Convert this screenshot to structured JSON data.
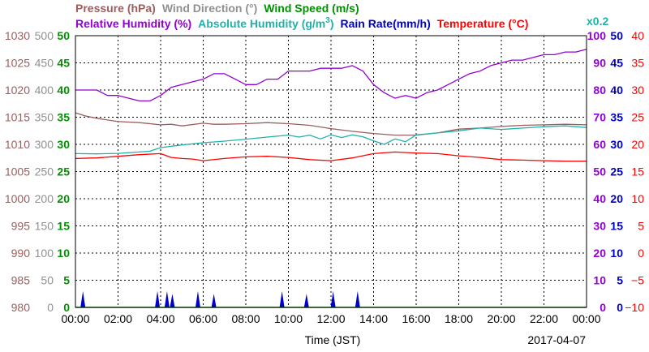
{
  "chart_data": {
    "type": "line",
    "xlabel": "Time (JST)",
    "date_label": "2017-04-07",
    "x_ticks": [
      "00:00",
      "02:00",
      "04:00",
      "06:00",
      "08:00",
      "10:00",
      "12:00",
      "14:00",
      "16:00",
      "18:00",
      "20:00",
      "22:00",
      "00:00"
    ],
    "x_range_hours": [
      0,
      24
    ],
    "grid": true,
    "legend": {
      "row1": [
        {
          "key": "pressure",
          "text": "Pressure (hPa)",
          "color": "#9B5E5E"
        },
        {
          "key": "wind_dir",
          "text": "Wind Direction (°)",
          "color": "#909090"
        },
        {
          "key": "wind_speed",
          "text": "Wind Speed (m/s)",
          "color": "#009000"
        }
      ],
      "row2": [
        {
          "key": "rh",
          "text": "Relative Humidity (%)",
          "color": "#9400D3"
        },
        {
          "key": "ah",
          "text": "Absolute Humidity (g/m",
          "sup": "3",
          "tail": ")",
          "color": "#20B2AA"
        },
        {
          "key": "rain",
          "text": "Rain Rate(mm/h)",
          "color": "#0000CC"
        },
        {
          "key": "temp",
          "text": "Temperature (°C)",
          "color": "#FF0000"
        }
      ],
      "ah_multiplier": "x0.2"
    },
    "axes": {
      "pressure": {
        "color": "#9B5E5E",
        "range": [
          980,
          1030
        ],
        "ticks": [
          "980",
          "985",
          "990",
          "995",
          "1000",
          "1005",
          "1010",
          "1015",
          "1020",
          "1025",
          "1030"
        ]
      },
      "wind_dir": {
        "color": "#909090",
        "range": [
          0,
          500
        ],
        "ticks": [
          "0",
          "50",
          "100",
          "150",
          "200",
          "250",
          "300",
          "350",
          "400",
          "450",
          "500"
        ]
      },
      "wind_speed": {
        "color": "#009000",
        "range": [
          0,
          50
        ],
        "ticks": [
          "0",
          "5",
          "10",
          "15",
          "20",
          "25",
          "30",
          "35",
          "40",
          "45",
          "50"
        ]
      },
      "rh": {
        "color": "#9400D3",
        "range": [
          0,
          100
        ],
        "ticks": [
          "0",
          "10",
          "20",
          "30",
          "40",
          "50",
          "60",
          "70",
          "80",
          "90",
          "100"
        ]
      },
      "rain": {
        "color": "#0000CC",
        "range": [
          0,
          50
        ],
        "ticks": [
          "0",
          "5",
          "10",
          "15",
          "20",
          "25",
          "30",
          "35",
          "40",
          "45",
          "50"
        ]
      },
      "temp": {
        "color": "#FF0000",
        "range": [
          -10,
          40
        ],
        "ticks": [
          "−10",
          "−5",
          "0",
          "5",
          "10",
          "15",
          "20",
          "25",
          "30",
          "35",
          "40"
        ]
      }
    },
    "series": [
      {
        "name": "Pressure (hPa)",
        "color": "#9B5E5E",
        "axis": "pressure",
        "x": [
          0,
          0.5,
          1,
          2,
          3,
          4,
          4.5,
          5,
          6,
          6.5,
          7,
          8,
          9,
          10,
          11,
          12,
          13,
          14,
          15,
          16,
          17,
          18,
          19,
          20,
          21,
          22,
          23,
          24
        ],
        "y": [
          1015.8,
          1015.2,
          1014.8,
          1014.2,
          1014.0,
          1013.6,
          1013.7,
          1013.4,
          1013.9,
          1013.7,
          1013.7,
          1013.8,
          1014.0,
          1013.8,
          1013.5,
          1012.9,
          1012.4,
          1012.0,
          1011.7,
          1011.7,
          1012.1,
          1012.8,
          1013.0,
          1013.3,
          1013.5,
          1013.6,
          1013.7,
          1013.6
        ]
      },
      {
        "name": "Absolute Humidity (g/m3)",
        "color": "#20B2AA",
        "axis": "rh",
        "x": [
          0,
          1,
          2,
          3,
          3.5,
          4,
          5,
          6,
          7,
          8,
          9,
          10,
          10.5,
          11,
          11.5,
          12,
          12.5,
          13,
          13.5,
          14,
          14.5,
          15,
          15.5,
          16,
          17,
          18,
          19,
          20,
          21,
          22,
          23,
          24
        ],
        "y": [
          56.6,
          56.5,
          56.7,
          57.2,
          57.5,
          58.8,
          59.8,
          60.6,
          61.2,
          61.9,
          62.7,
          63.4,
          62.7,
          63.4,
          62.0,
          63.5,
          62.5,
          63.5,
          62.8,
          61.3,
          60.0,
          62.0,
          61.0,
          63.5,
          64.2,
          65.0,
          66.0,
          65.5,
          66.0,
          66.5,
          66.8,
          66.2
        ]
      },
      {
        "name": "Temperature (°C)",
        "color": "#FF0000",
        "axis": "temp",
        "x": [
          0,
          1,
          2,
          3,
          4,
          4.5,
          5,
          5.5,
          6,
          7,
          8,
          9,
          10,
          11,
          12,
          13,
          14,
          15,
          16,
          17,
          18,
          19,
          20,
          21,
          22,
          23,
          24
        ],
        "y": [
          17.4,
          17.5,
          17.8,
          18.1,
          18.3,
          17.6,
          17.4,
          17.3,
          17.0,
          17.4,
          17.7,
          17.8,
          17.6,
          17.2,
          17.0,
          17.5,
          18.3,
          18.6,
          18.4,
          18.3,
          17.9,
          17.6,
          17.2,
          17.1,
          17.0,
          16.9,
          16.9
        ]
      },
      {
        "name": "Relative Humidity (%)",
        "color": "#9400D3",
        "axis": "rh",
        "x": [
          0,
          1,
          1.5,
          2,
          2.5,
          3,
          3.5,
          4,
          4.5,
          5,
          5.5,
          6,
          6.5,
          7,
          7.5,
          8,
          8.5,
          9,
          9.5,
          10,
          10.5,
          11,
          11.5,
          12,
          12.5,
          13,
          13.5,
          14,
          14.5,
          15,
          15.5,
          16,
          16.5,
          17,
          17.5,
          18,
          18.5,
          19,
          19.5,
          20,
          20.5,
          21,
          21.5,
          22,
          22.5,
          23,
          23.5,
          24
        ],
        "y": [
          80,
          80,
          78,
          78,
          77,
          76,
          76,
          78,
          81,
          82,
          83,
          84,
          86,
          86,
          84,
          82,
          82,
          84,
          84,
          87,
          87,
          87,
          88,
          88,
          88,
          89,
          87,
          82,
          79,
          77,
          78,
          77,
          79,
          80,
          82,
          84,
          86,
          87,
          89,
          90,
          91,
          91,
          92,
          93,
          93,
          94,
          94,
          95
        ]
      }
    ],
    "rain_events": [
      {
        "x": 0.35,
        "y": 3.0
      },
      {
        "x": 3.85,
        "y": 3.0
      },
      {
        "x": 4.3,
        "y": 3.0
      },
      {
        "x": 4.55,
        "y": 2.5
      },
      {
        "x": 5.75,
        "y": 3.0
      },
      {
        "x": 6.5,
        "y": 2.5
      },
      {
        "x": 9.7,
        "y": 3.0
      },
      {
        "x": 10.85,
        "y": 2.5
      },
      {
        "x": 12.1,
        "y": 3.0
      },
      {
        "x": 13.25,
        "y": 3.0
      }
    ]
  }
}
